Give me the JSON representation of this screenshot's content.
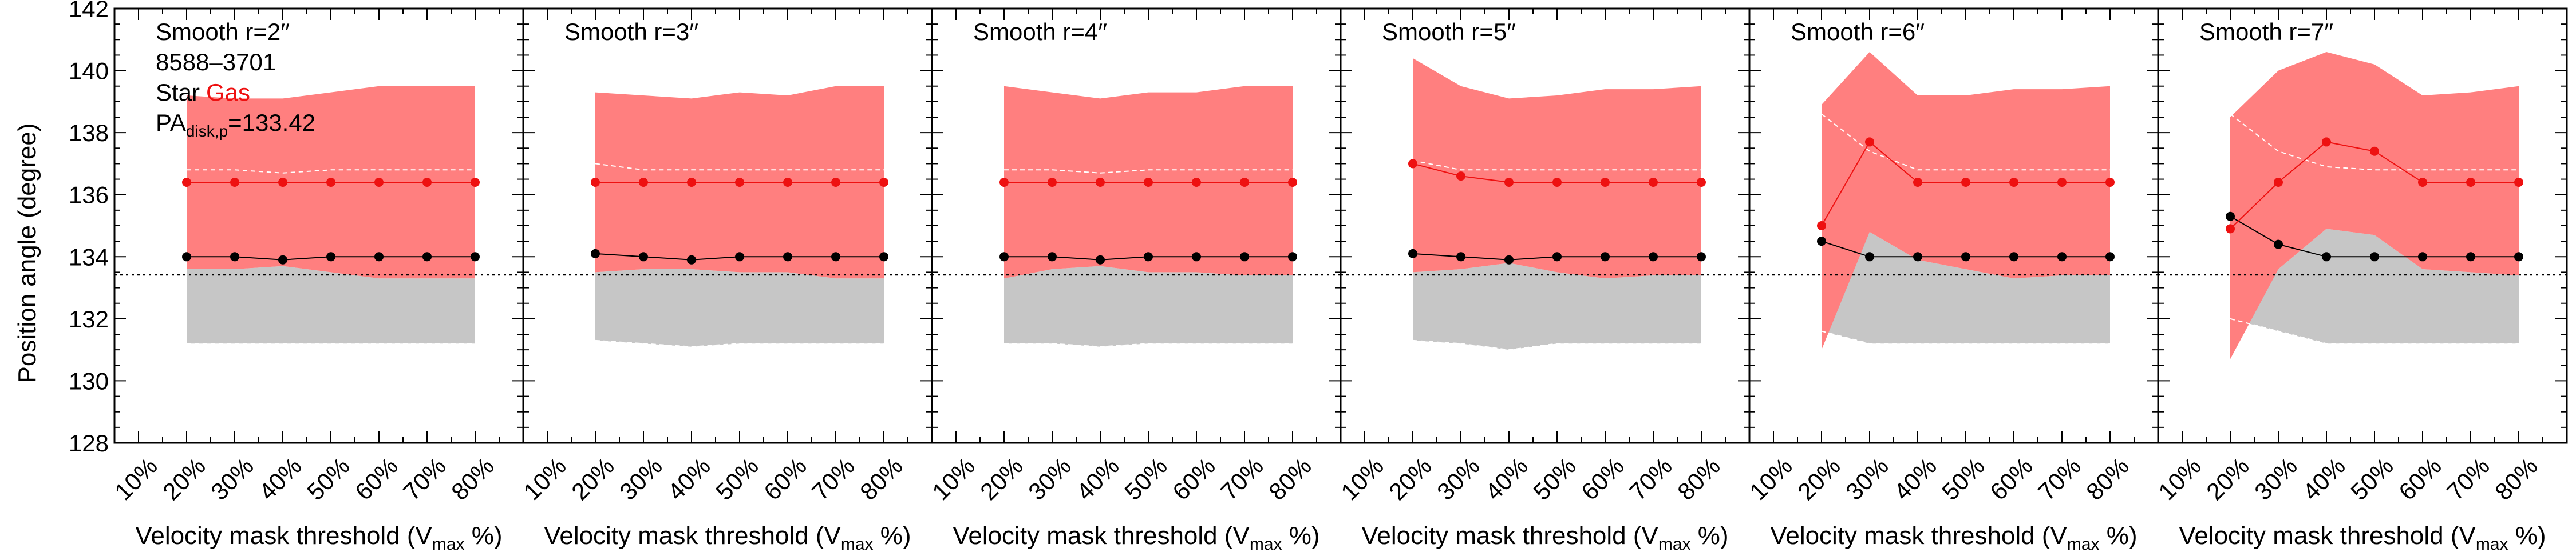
{
  "figure": {
    "ylabel": "Position angle (degree)",
    "xlabel_prefix": "Velocity mask threshold (V",
    "xlabel_sub": "max",
    "xlabel_suffix": " %)",
    "info": {
      "id": "8588–3701",
      "star_label": "Star",
      "gas_label": "Gas",
      "pa_main": "PA",
      "pa_sub": "disk,p",
      "pa_value": "=133.42"
    },
    "colors": {
      "star": "#000000",
      "gas": "#ee1111",
      "gas_band": "#ff7f7f",
      "star_band": "#c6c6c6"
    }
  },
  "chart_data": [
    {
      "type": "line",
      "title": "Smooth r=2′′",
      "categories": [
        "10%",
        "20%",
        "30%",
        "40%",
        "50%",
        "60%",
        "70%",
        "80%"
      ],
      "ylim": [
        128,
        142
      ],
      "yticks": [
        128,
        130,
        132,
        134,
        136,
        138,
        140,
        142
      ],
      "pa_disk": 133.42,
      "series": [
        {
          "name": "Star",
          "x": [
            20,
            30,
            40,
            50,
            60,
            70,
            80
          ],
          "values": [
            134.0,
            134.0,
            133.9,
            134.0,
            134.0,
            134.0,
            134.0
          ],
          "band_low": [
            131.2,
            131.2,
            131.2,
            131.2,
            131.2,
            131.2,
            131.2
          ],
          "band_high": [
            133.6,
            133.6,
            133.7,
            133.5,
            133.3,
            133.3,
            133.3
          ]
        },
        {
          "name": "Gas",
          "x": [
            20,
            30,
            40,
            50,
            60,
            70,
            80
          ],
          "values": [
            136.4,
            136.4,
            136.4,
            136.4,
            136.4,
            136.4,
            136.4
          ],
          "band_low": [
            133.6,
            133.6,
            133.7,
            133.5,
            133.3,
            133.3,
            133.3
          ],
          "band_high": [
            139.2,
            139.1,
            139.1,
            139.3,
            139.5,
            139.5,
            139.5
          ],
          "median_dashed": [
            136.8,
            136.8,
            136.7,
            136.8,
            136.8,
            136.8,
            136.8
          ]
        }
      ]
    },
    {
      "type": "line",
      "title": "Smooth r=3′′",
      "categories": [
        "10%",
        "20%",
        "30%",
        "40%",
        "50%",
        "60%",
        "70%",
        "80%"
      ],
      "ylim": [
        128,
        142
      ],
      "yticks": [
        128,
        130,
        132,
        134,
        136,
        138,
        140,
        142
      ],
      "pa_disk": 133.42,
      "series": [
        {
          "name": "Star",
          "x": [
            20,
            30,
            40,
            50,
            60,
            70,
            80
          ],
          "values": [
            134.1,
            134.0,
            133.9,
            134.0,
            134.0,
            134.0,
            134.0
          ],
          "band_low": [
            131.3,
            131.2,
            131.1,
            131.2,
            131.2,
            131.2,
            131.2
          ],
          "band_high": [
            133.5,
            133.6,
            133.6,
            133.5,
            133.5,
            133.3,
            133.3
          ]
        },
        {
          "name": "Gas",
          "x": [
            20,
            30,
            40,
            50,
            60,
            70,
            80
          ],
          "values": [
            136.4,
            136.4,
            136.4,
            136.4,
            136.4,
            136.4,
            136.4
          ],
          "band_low": [
            133.5,
            133.6,
            133.6,
            133.5,
            133.5,
            133.3,
            133.3
          ],
          "band_high": [
            139.3,
            139.2,
            139.1,
            139.3,
            139.2,
            139.5,
            139.5
          ],
          "median_dashed": [
            137.0,
            136.8,
            136.8,
            136.8,
            136.8,
            136.8,
            136.8
          ]
        }
      ]
    },
    {
      "type": "line",
      "title": "Smooth r=4′′",
      "categories": [
        "10%",
        "20%",
        "30%",
        "40%",
        "50%",
        "60%",
        "70%",
        "80%"
      ],
      "ylim": [
        128,
        142
      ],
      "yticks": [
        128,
        130,
        132,
        134,
        136,
        138,
        140,
        142
      ],
      "pa_disk": 133.42,
      "series": [
        {
          "name": "Star",
          "x": [
            20,
            30,
            40,
            50,
            60,
            70,
            80
          ],
          "values": [
            134.0,
            134.0,
            133.9,
            134.0,
            134.0,
            134.0,
            134.0
          ],
          "band_low": [
            131.2,
            131.2,
            131.1,
            131.2,
            131.2,
            131.2,
            131.2
          ],
          "band_high": [
            133.3,
            133.6,
            133.7,
            133.5,
            133.5,
            133.4,
            133.4
          ]
        },
        {
          "name": "Gas",
          "x": [
            20,
            30,
            40,
            50,
            60,
            70,
            80
          ],
          "values": [
            136.4,
            136.4,
            136.4,
            136.4,
            136.4,
            136.4,
            136.4
          ],
          "band_low": [
            133.3,
            133.6,
            133.7,
            133.5,
            133.5,
            133.4,
            133.4
          ],
          "band_high": [
            139.5,
            139.3,
            139.1,
            139.3,
            139.3,
            139.5,
            139.5
          ],
          "median_dashed": [
            136.8,
            136.8,
            136.7,
            136.8,
            136.8,
            136.8,
            136.8
          ]
        }
      ]
    },
    {
      "type": "line",
      "title": "Smooth r=5′′",
      "categories": [
        "10%",
        "20%",
        "30%",
        "40%",
        "50%",
        "60%",
        "70%",
        "80%"
      ],
      "ylim": [
        128,
        142
      ],
      "yticks": [
        128,
        130,
        132,
        134,
        136,
        138,
        140,
        142
      ],
      "pa_disk": 133.42,
      "series": [
        {
          "name": "Star",
          "x": [
            20,
            30,
            40,
            50,
            60,
            70,
            80
          ],
          "values": [
            134.1,
            134.0,
            133.9,
            134.0,
            134.0,
            134.0,
            134.0
          ],
          "band_low": [
            131.3,
            131.2,
            131.0,
            131.2,
            131.2,
            131.2,
            131.2
          ],
          "band_high": [
            133.5,
            133.6,
            133.8,
            133.5,
            133.3,
            133.4,
            133.4
          ]
        },
        {
          "name": "Gas",
          "x": [
            20,
            30,
            40,
            50,
            60,
            70,
            80
          ],
          "values": [
            137.0,
            136.6,
            136.4,
            136.4,
            136.4,
            136.4,
            136.4
          ],
          "band_low": [
            133.5,
            133.6,
            133.8,
            133.5,
            133.3,
            133.4,
            133.4
          ],
          "band_high": [
            140.4,
            139.5,
            139.1,
            139.2,
            139.4,
            139.4,
            139.5
          ],
          "median_dashed": [
            137.1,
            136.8,
            136.8,
            136.8,
            136.8,
            136.8,
            136.8
          ]
        }
      ]
    },
    {
      "type": "line",
      "title": "Smooth r=6′′",
      "categories": [
        "10%",
        "20%",
        "30%",
        "40%",
        "50%",
        "60%",
        "70%",
        "80%"
      ],
      "ylim": [
        128,
        142
      ],
      "yticks": [
        128,
        130,
        132,
        134,
        136,
        138,
        140,
        142
      ],
      "pa_disk": 133.42,
      "series": [
        {
          "name": "Star",
          "x": [
            20,
            30,
            40,
            50,
            60,
            70,
            80
          ],
          "values": [
            134.5,
            134.0,
            134.0,
            134.0,
            134.0,
            134.0,
            134.0
          ],
          "band_low": [
            131.6,
            131.2,
            131.2,
            131.2,
            131.2,
            131.2,
            131.2
          ],
          "band_high": [
            131.6,
            134.8,
            133.9,
            133.6,
            133.3,
            133.4,
            133.4
          ]
        },
        {
          "name": "Gas",
          "x": [
            20,
            30,
            40,
            50,
            60,
            70,
            80
          ],
          "values": [
            135.0,
            137.7,
            136.4,
            136.4,
            136.4,
            136.4,
            136.4
          ],
          "band_low": [
            131.0,
            134.8,
            133.9,
            133.6,
            133.3,
            133.4,
            133.4
          ],
          "band_high": [
            138.9,
            140.6,
            139.2,
            139.2,
            139.4,
            139.4,
            139.5
          ],
          "median_dashed": [
            138.6,
            137.4,
            136.8,
            136.8,
            136.8,
            136.8,
            136.8
          ]
        }
      ]
    },
    {
      "type": "line",
      "title": "Smooth r=7′′",
      "categories": [
        "10%",
        "20%",
        "30%",
        "40%",
        "50%",
        "60%",
        "70%",
        "80%"
      ],
      "ylim": [
        128,
        142
      ],
      "yticks": [
        128,
        130,
        132,
        134,
        136,
        138,
        140,
        142
      ],
      "pa_disk": 133.42,
      "series": [
        {
          "name": "Star",
          "x": [
            20,
            30,
            40,
            50,
            60,
            70,
            80
          ],
          "values": [
            135.3,
            134.4,
            134.0,
            134.0,
            134.0,
            134.0,
            134.0
          ],
          "band_low": [
            132.0,
            131.6,
            131.2,
            131.2,
            131.2,
            131.2,
            131.2
          ],
          "band_high": [
            132.0,
            133.6,
            134.9,
            134.7,
            133.6,
            133.5,
            133.4
          ]
        },
        {
          "name": "Gas",
          "x": [
            20,
            30,
            40,
            50,
            60,
            70,
            80
          ],
          "values": [
            134.9,
            136.4,
            137.7,
            137.4,
            136.4,
            136.4,
            136.4
          ],
          "band_low": [
            130.7,
            133.6,
            134.9,
            134.7,
            133.6,
            133.5,
            133.4
          ],
          "band_high": [
            138.5,
            140.0,
            140.6,
            140.2,
            139.2,
            139.3,
            139.5
          ],
          "median_dashed": [
            138.6,
            137.4,
            136.9,
            136.8,
            136.8,
            136.8,
            136.8
          ]
        }
      ]
    }
  ]
}
